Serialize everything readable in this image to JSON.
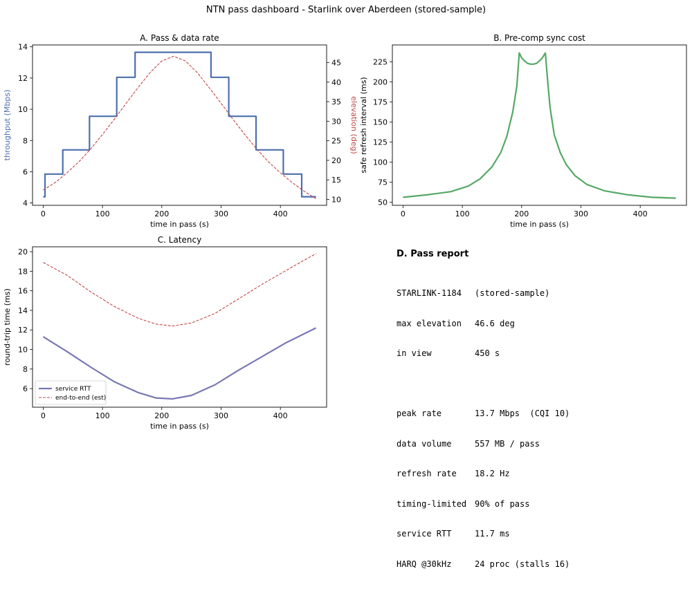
{
  "figure": {
    "title": "NTN pass dashboard - Starlink over Aberdeen (stored-sample)",
    "colors": {
      "throughput": "#4c6fae",
      "elevation": "#c04444",
      "sync": "#55a865",
      "rtt": "#7877b5",
      "e2e": "#c04444"
    }
  },
  "chart_data": [
    {
      "id": "A",
      "type": "line",
      "title": "A. Pass & data rate",
      "xlabel": "time in pass (s)",
      "ylabel": "throughput (Mbps)",
      "y2label": "elevation (deg)",
      "xlim": [
        -18,
        478
      ],
      "ylim": [
        3.85,
        14.12
      ],
      "y2lim": [
        8.5,
        49.5
      ],
      "xticks": [
        0,
        100,
        200,
        300,
        400
      ],
      "yticks": [
        4,
        6,
        8,
        10,
        12,
        14
      ],
      "y2ticks": [
        10,
        15,
        20,
        25,
        30,
        35,
        40,
        45
      ],
      "series": [
        {
          "name": "throughput",
          "style": "step",
          "x": [
            0,
            3,
            3,
            33,
            33,
            78,
            78,
            124,
            124,
            155,
            155,
            283,
            283,
            313,
            313,
            359,
            359,
            405,
            405,
            436,
            436,
            460
          ],
          "y": [
            4.4,
            4.4,
            5.85,
            5.85,
            7.4,
            7.4,
            9.55,
            9.55,
            12.05,
            12.05,
            13.65,
            13.65,
            12.05,
            12.05,
            9.55,
            9.55,
            7.4,
            7.4,
            5.85,
            5.85,
            4.4,
            4.4
          ]
        },
        {
          "name": "elevation",
          "style": "dashed",
          "axis": "y2",
          "x": [
            0,
            20,
            40,
            60,
            80,
            100,
            120,
            140,
            160,
            180,
            200,
            220,
            240,
            260,
            280,
            300,
            320,
            340,
            360,
            380,
            400,
            420,
            440,
            460
          ],
          "y": [
            12.4,
            14.3,
            16.8,
            19.6,
            22.9,
            26.6,
            30.5,
            34.6,
            38.6,
            42.4,
            45.4,
            46.6,
            45.4,
            42.4,
            38.6,
            34.6,
            30.5,
            26.6,
            22.9,
            19.6,
            16.8,
            14.3,
            12.1,
            10.2
          ]
        }
      ],
      "grid": false
    },
    {
      "id": "B",
      "type": "line",
      "title": "B. Pre-comp sync cost",
      "xlabel": "time in pass (s)",
      "ylabel": "safe refresh interval (ms)",
      "xlim": [
        -18,
        478
      ],
      "ylim": [
        46,
        246
      ],
      "xticks": [
        0,
        100,
        200,
        300,
        400
      ],
      "yticks": [
        50,
        75,
        100,
        125,
        150,
        175,
        200,
        225
      ],
      "series": [
        {
          "name": "safe refresh interval",
          "x": [
            0,
            40,
            80,
            110,
            130,
            150,
            165,
            175,
            185,
            192,
            196,
            200,
            205,
            210,
            215,
            220,
            225,
            230,
            235,
            240,
            244,
            248,
            255,
            265,
            275,
            290,
            310,
            340,
            380,
            420,
            460
          ],
          "y": [
            56,
            59,
            63,
            70,
            79,
            94,
            112,
            132,
            162,
            195,
            236,
            230,
            226,
            223,
            222,
            222,
            223,
            226,
            230,
            236,
            200,
            168,
            134,
            112,
            97,
            83,
            72,
            64,
            59,
            56,
            55
          ]
        }
      ],
      "grid": false
    },
    {
      "id": "C",
      "type": "line",
      "title": "C. Latency",
      "xlabel": "time in pass (s)",
      "ylabel": "round-trip time (ms)",
      "xlim": [
        -18,
        478
      ],
      "ylim": [
        4.1,
        20.5
      ],
      "xticks": [
        0,
        100,
        200,
        300,
        400
      ],
      "yticks": [
        6,
        8,
        10,
        12,
        14,
        16,
        18,
        20
      ],
      "legend": "lower-left",
      "series": [
        {
          "name": "service RTT",
          "style": "solid",
          "x": [
            0,
            40,
            80,
            120,
            160,
            190,
            218,
            250,
            290,
            330,
            370,
            410,
            460
          ],
          "y": [
            11.3,
            9.8,
            8.2,
            6.7,
            5.6,
            5.05,
            4.95,
            5.3,
            6.4,
            7.9,
            9.3,
            10.7,
            12.2
          ]
        },
        {
          "name": "end-to-end (est)",
          "style": "dashed",
          "x": [
            0,
            40,
            80,
            120,
            160,
            190,
            218,
            250,
            290,
            330,
            370,
            410,
            460
          ],
          "y": [
            18.9,
            17.6,
            15.9,
            14.4,
            13.2,
            12.6,
            12.4,
            12.7,
            13.7,
            15.2,
            16.7,
            18.1,
            19.8
          ]
        }
      ],
      "grid": false
    }
  ],
  "report": {
    "title": "D. Pass report",
    "groups": [
      [
        {
          "label": "STARLINK-1184",
          "value": "(stored-sample)"
        },
        {
          "label": "max elevation",
          "value": "46.6 deg"
        },
        {
          "label": "in view",
          "value": "450 s"
        }
      ],
      [
        {
          "label": "peak rate",
          "value": "13.7 Mbps  (CQI 10)"
        },
        {
          "label": "data volume",
          "value": "557 MB / pass"
        },
        {
          "label": "refresh rate",
          "value": "18.2 Hz"
        },
        {
          "label": "timing-limited",
          "value": "90% of pass"
        },
        {
          "label": "service RTT",
          "value": "11.7 ms"
        },
        {
          "label": "HARQ @30kHz",
          "value": "24 proc (stalls 16)"
        }
      ]
    ]
  }
}
